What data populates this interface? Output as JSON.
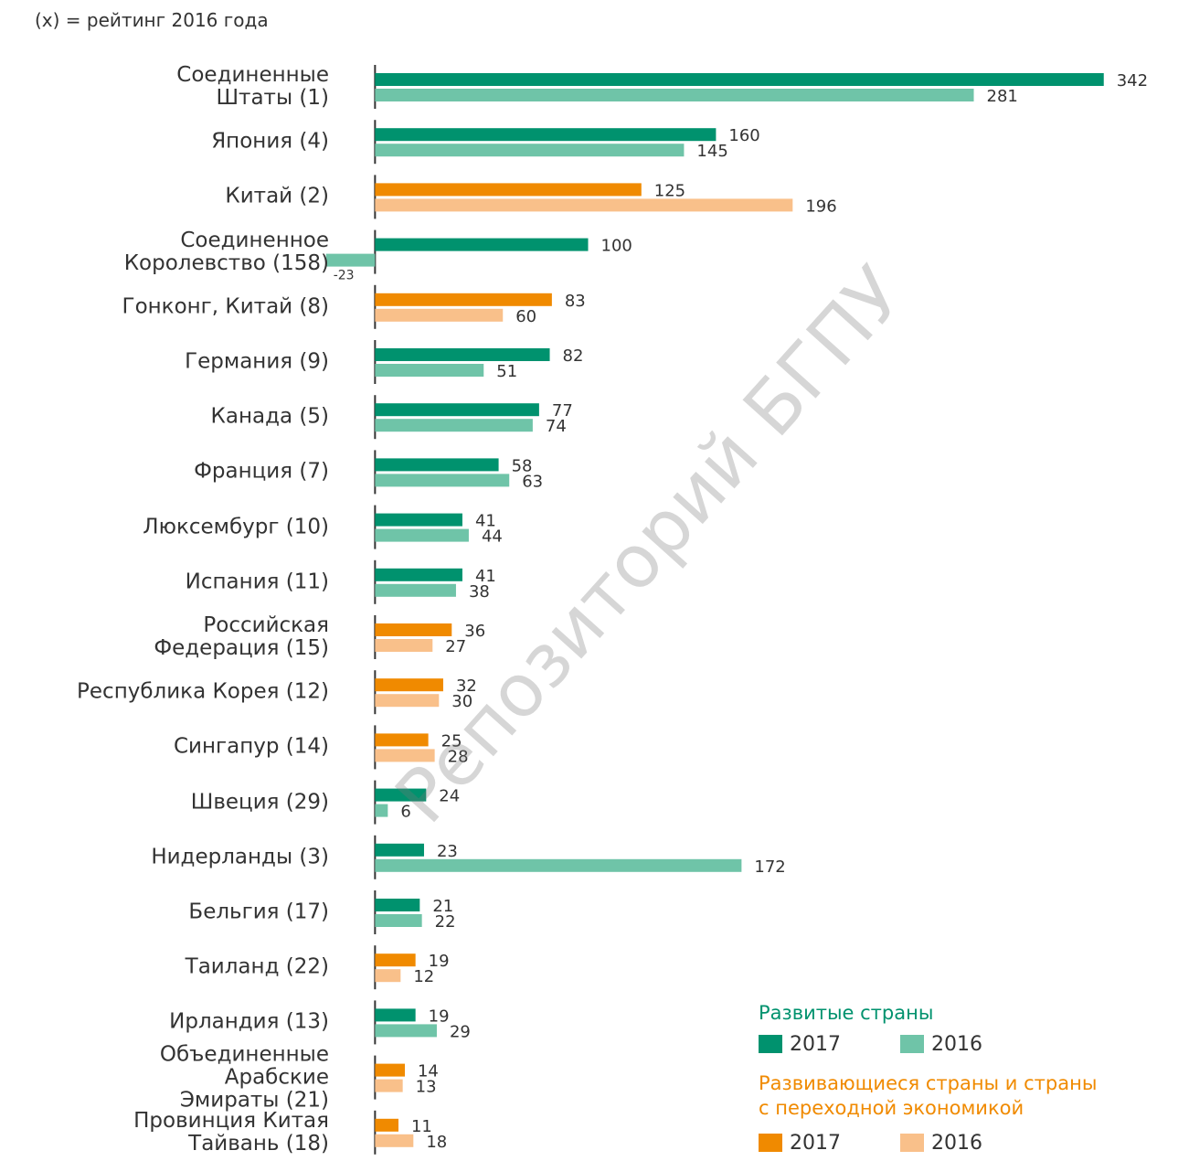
{
  "chart_data": {
    "type": "bar",
    "orientation": "horizontal",
    "note": "(x) = рейтинг 2016 года",
    "watermark": "Репозиторий БГПУ",
    "categories": [
      "Соединенные\nШтаты (1)",
      "Япония (4)",
      "Китай (2)",
      "Соединенное\nКоролевство (158)",
      "Гонконг, Китай (8)",
      "Германия (9)",
      "Канада (5)",
      "Франция (7)",
      "Люксембург (10)",
      "Испания (11)",
      "Российская\nФедерация (15)",
      "Республика Корея (12)",
      "Сингапур (14)",
      "Швеция (29)",
      "Нидерланды (3)",
      "Бельгия (17)",
      "Таиланд (22)",
      "Ирландия (13)",
      "Объединенные\nАрабские\nЭмираты (21)",
      "Провинция Китая\nТайвань (18)"
    ],
    "series": [
      {
        "name": "2017",
        "values": [
          342,
          160,
          125,
          100,
          83,
          82,
          77,
          58,
          41,
          41,
          36,
          32,
          25,
          24,
          23,
          21,
          19,
          19,
          14,
          11
        ]
      },
      {
        "name": "2016",
        "values": [
          281,
          145,
          196,
          -23,
          60,
          51,
          74,
          63,
          44,
          38,
          27,
          30,
          28,
          6,
          172,
          22,
          12,
          29,
          13,
          18
        ]
      }
    ],
    "groups": [
      {
        "name": "Развитые страны",
        "colors": [
          "#00926e",
          "#6fc4a8"
        ]
      },
      {
        "name": "Развивающиеся страны и страны\nс переходной экономикой",
        "colors": [
          "#f08a00",
          "#f9c08a"
        ]
      }
    ],
    "category_group": [
      0,
      0,
      1,
      0,
      1,
      0,
      0,
      0,
      0,
      0,
      1,
      1,
      1,
      0,
      0,
      0,
      1,
      0,
      1,
      1
    ],
    "xlim": [
      -176,
      382
    ]
  }
}
